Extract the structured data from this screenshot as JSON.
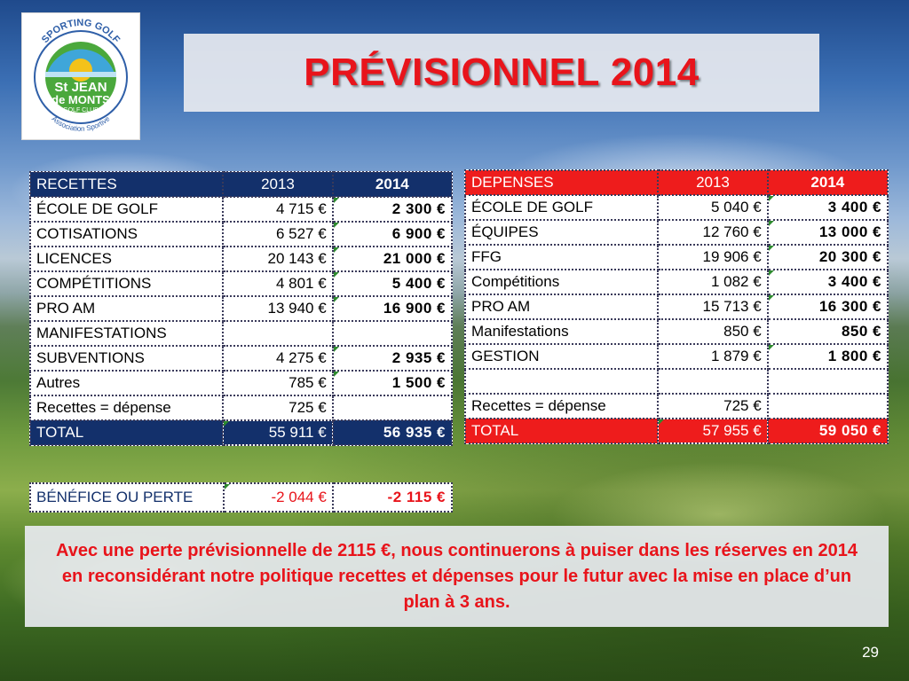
{
  "logo": {
    "arc_text": "SPORTING GOLF",
    "name_line1": "St JEAN",
    "name_line2": "de MONTS",
    "club": "GOLF CLUB",
    "bottom_text": "Association Sportive",
    "colors": {
      "blue": "#2f5fa8",
      "green": "#4aa83c",
      "sun": "#f3c21a",
      "sea": "#3fa6d9"
    }
  },
  "title": "PRÉVISIONNEL 2014",
  "recettes": {
    "header": [
      "RECETTES",
      "2013",
      "2014"
    ],
    "rows": [
      {
        "label": "ÉCOLE DE GOLF",
        "y2013": "4 715 €",
        "y2014": "2 300 €"
      },
      {
        "label": "COTISATIONS",
        "y2013": "6 527 €",
        "y2014": "6 900 €"
      },
      {
        "label": "LICENCES",
        "y2013": "20 143 €",
        "y2014": "21 000 €"
      },
      {
        "label": "COMPÉTITIONS",
        "y2013": "4 801 €",
        "y2014": "5 400 €"
      },
      {
        "label": "PRO AM",
        "y2013": "13 940 €",
        "y2014": "16 900 €"
      },
      {
        "label": "MANIFESTATIONS",
        "y2013": "",
        "y2014": ""
      },
      {
        "label": "SUBVENTIONS",
        "y2013": "4 275 €",
        "y2014": "2 935 €"
      },
      {
        "label": "Autres",
        "y2013": "785 €",
        "y2014": "1 500 €"
      },
      {
        "label": "Recettes = dépense",
        "y2013": "725 €",
        "y2014": ""
      }
    ],
    "total": {
      "label": "TOTAL",
      "y2013": "55 911 €",
      "y2014": "56 935 €"
    }
  },
  "depenses": {
    "header": [
      "DEPENSES",
      "2013",
      "2014"
    ],
    "rows": [
      {
        "label": "ÉCOLE DE GOLF",
        "y2013": "5 040 €",
        "y2014": "3 400 €"
      },
      {
        "label": "ÉQUIPES",
        "y2013": "12 760 €",
        "y2014": "13 000 €"
      },
      {
        "label": "FFG",
        "y2013": "19 906 €",
        "y2014": "20 300 €"
      },
      {
        "label": "Compétitions",
        "y2013": "1 082 €",
        "y2014": "3 400 €"
      },
      {
        "label": "PRO AM",
        "y2013": "15 713 €",
        "y2014": "16 300 €"
      },
      {
        "label": "Manifestations",
        "y2013": "850 €",
        "y2014": "850 €"
      },
      {
        "label": "GESTION",
        "y2013": "1 879 €",
        "y2014": "1 800 €"
      },
      {
        "label": "",
        "y2013": "",
        "y2014": ""
      },
      {
        "label": "Recettes = dépense",
        "y2013": "725 €",
        "y2014": ""
      }
    ],
    "total": {
      "label": "TOTAL",
      "y2013": "57 955 €",
      "y2014": "59 050 €"
    }
  },
  "benefice": {
    "label": "BÉNÉFICE OU PERTE",
    "y2013": "-2 044 €",
    "y2014": "-2 115 €"
  },
  "note": "Avec une perte prévisionnelle de 2115 €, nous continuerons à puiser dans les réserves en 2014 en reconsidérant notre politique recettes et dépenses pour le futur avec la mise en place d’un plan à 3 ans.",
  "page_number": "29",
  "colors": {
    "title_red": "#e8141b",
    "navy": "#13306b",
    "red": "#ee1c1c"
  }
}
